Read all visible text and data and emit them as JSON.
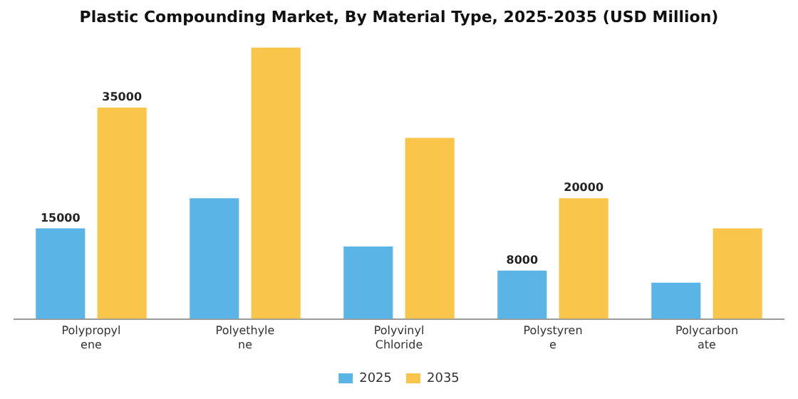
{
  "chart_data": {
    "type": "bar",
    "title": "Plastic Compounding Market, By Material Type, 2025-2035 (USD Million)",
    "categories": [
      "Polypropyl\nene",
      "Polyethyle\nne",
      "Polyvinyl\nChloride",
      "Polystyren\ne",
      "Polycarbon\nate"
    ],
    "series": [
      {
        "name": "2025",
        "color": "#5ab4e5",
        "values": [
          15000,
          20000,
          12000,
          8000,
          6000
        ],
        "value_labels": [
          "15000",
          null,
          null,
          "8000",
          null
        ]
      },
      {
        "name": "2035",
        "color": "#f9c54a",
        "values": [
          35000,
          45000,
          30000,
          20000,
          15000
        ],
        "value_labels": [
          "35000",
          null,
          null,
          "20000",
          null
        ]
      }
    ],
    "tick_labels": "x",
    "grid": false,
    "legend": "bottom"
  }
}
